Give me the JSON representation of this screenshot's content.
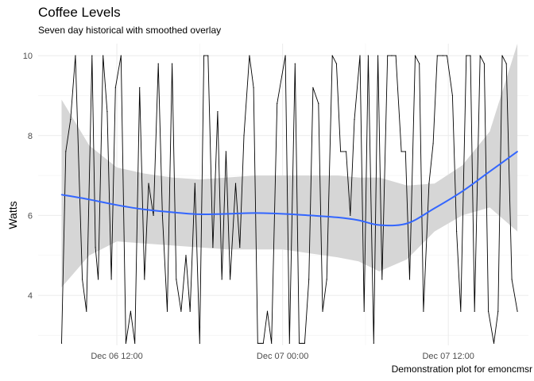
{
  "chart_data": {
    "type": "line",
    "title": "Coffee Levels",
    "subtitle": "Seven day historical with smoothed overlay",
    "ylabel": "Watts",
    "xlabel": "",
    "caption": "Demonstration plot for emoncmsr",
    "x_unit": "hours since Dec 06 00:00",
    "xlim": [
      6.3,
      41.8
    ],
    "ylim": [
      2.75,
      10.3
    ],
    "x_ticks": [
      {
        "value": 12,
        "label": "Dec 06 12:00"
      },
      {
        "value": 24,
        "label": "Dec 07 00:00"
      },
      {
        "value": 36,
        "label": "Dec 07 12:00"
      }
    ],
    "y_ticks": [
      {
        "value": 4,
        "label": "4"
      },
      {
        "value": 6,
        "label": "6"
      },
      {
        "value": 8,
        "label": "8"
      },
      {
        "value": 10,
        "label": "10"
      }
    ],
    "grid": true,
    "series": [
      {
        "name": "raw",
        "color": "#000000",
        "x": [
          8.0,
          8.3,
          8.65,
          9.0,
          9.5,
          9.8,
          10.2,
          10.45,
          10.65,
          11.0,
          11.3,
          11.6,
          11.9,
          12.3,
          12.65,
          13.0,
          13.3,
          13.65,
          14.0,
          14.3,
          14.65,
          15.0,
          15.3,
          15.65,
          16.0,
          16.3,
          16.65,
          17.0,
          17.3,
          17.65,
          18.0,
          18.3,
          18.6,
          18.95,
          19.3,
          19.6,
          19.9,
          20.2,
          20.6,
          20.9,
          21.2,
          21.6,
          21.9,
          22.2,
          22.6,
          22.9,
          23.2,
          23.6,
          24.2,
          24.5,
          24.9,
          25.2,
          25.6,
          25.9,
          26.2,
          26.6,
          26.9,
          27.2,
          27.6,
          27.9,
          28.2,
          28.6,
          28.9,
          29.2,
          29.6,
          29.9,
          30.2,
          30.6,
          30.9,
          31.2,
          31.6,
          31.9,
          32.2,
          32.6,
          32.9,
          33.2,
          33.6,
          33.9,
          34.2,
          34.6,
          34.9,
          35.2,
          35.6,
          35.9,
          36.3,
          36.6,
          36.9,
          37.3,
          37.6,
          37.9,
          38.3,
          38.6,
          38.9,
          39.3,
          39.6,
          39.9,
          40.2,
          40.6,
          41.0
        ],
        "y": [
          2.8,
          7.6,
          8.4,
          10.0,
          4.4,
          3.6,
          10.0,
          5.2,
          4.4,
          10.0,
          8.6,
          4.4,
          9.2,
          10.0,
          2.8,
          3.6,
          2.8,
          9.2,
          4.4,
          6.8,
          6.0,
          9.8,
          6.0,
          3.6,
          9.8,
          4.4,
          3.6,
          5.0,
          3.6,
          6.8,
          2.8,
          10.0,
          10.0,
          5.2,
          8.6,
          4.4,
          7.6,
          4.4,
          6.8,
          5.2,
          8.0,
          10.0,
          9.2,
          2.8,
          2.8,
          3.6,
          2.8,
          8.8,
          10.0,
          2.8,
          9.8,
          2.8,
          2.8,
          4.4,
          9.2,
          8.8,
          3.6,
          4.4,
          10.0,
          9.8,
          7.6,
          7.6,
          6.0,
          8.4,
          10.0,
          3.6,
          10.0,
          2.8,
          10.0,
          4.4,
          10.0,
          10.0,
          10.0,
          7.6,
          7.6,
          4.4,
          10.0,
          9.8,
          3.6,
          6.8,
          7.8,
          10.0,
          10.0,
          10.0,
          9.0,
          5.6,
          3.6,
          10.0,
          10.0,
          3.6,
          10.0,
          9.8,
          3.6,
          2.8,
          3.6,
          10.0,
          9.8,
          4.4,
          3.6
        ]
      },
      {
        "name": "smoothed",
        "color": "#3366ff",
        "x": [
          8.0,
          10.0,
          12.0,
          14.0,
          16.0,
          18.0,
          20.0,
          22.0,
          24.0,
          26.0,
          28.0,
          29.5,
          31.0,
          33.0,
          35.0,
          37.0,
          39.0,
          41.0
        ],
        "y": [
          6.52,
          6.4,
          6.26,
          6.15,
          6.08,
          6.03,
          6.04,
          6.06,
          6.04,
          6.0,
          5.95,
          5.88,
          5.76,
          5.8,
          6.18,
          6.6,
          7.1,
          7.6
        ],
        "ci_lower": [
          4.2,
          5.0,
          5.35,
          5.3,
          5.25,
          5.2,
          5.15,
          5.15,
          5.15,
          5.05,
          4.95,
          4.85,
          4.6,
          4.9,
          5.6,
          6.0,
          6.2,
          5.6
        ],
        "ci_upper": [
          8.9,
          7.75,
          7.2,
          7.05,
          6.95,
          6.9,
          6.95,
          7.0,
          7.0,
          7.0,
          7.0,
          6.95,
          6.95,
          6.75,
          6.8,
          7.25,
          8.1,
          10.3
        ]
      }
    ]
  }
}
